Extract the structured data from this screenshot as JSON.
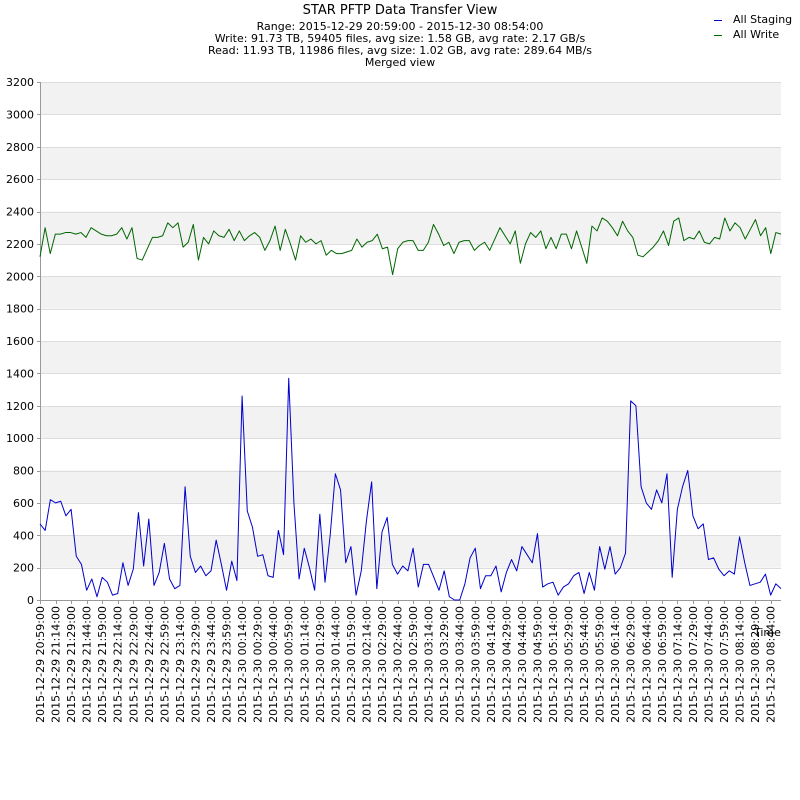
{
  "title": "STAR PFTP Data Transfer View",
  "subtitle_lines": [
    "Range: 2015-12-29 20:59:00 - 2015-12-30 08:54:00",
    "Write: 91.73 TB, 59405 files, avg size: 1.58 GB, avg rate: 2.17 GB/s",
    "Read: 11.93 TB, 11986 files, avg size: 1.02 GB, avg rate: 289.64 MB/s",
    "Merged view"
  ],
  "legend": {
    "items": [
      {
        "label": "All Staging",
        "color": "#0000cc"
      },
      {
        "label": "All Write",
        "color": "#006600"
      }
    ]
  },
  "chart_data": {
    "type": "line",
    "title": "STAR PFTP Data Transfer View",
    "xlabel": "Time",
    "ylabel": "",
    "ylim": [
      0,
      3200
    ],
    "yticks": [
      0,
      200,
      400,
      600,
      800,
      1000,
      1200,
      1400,
      1600,
      1800,
      2000,
      2200,
      2400,
      2600,
      2800,
      3000,
      3200
    ],
    "xlim": [
      "2015-12-29 20:59:00",
      "2015-12-30 08:54:00"
    ],
    "grid": true,
    "legend_position": "top-right",
    "x_tick_labels": [
      "2015-12-29 20:59:00",
      "2015-12-29 21:14:00",
      "2015-12-29 21:29:00",
      "2015-12-29 21:44:00",
      "2015-12-29 21:59:00",
      "2015-12-29 22:14:00",
      "2015-12-29 22:29:00",
      "2015-12-29 22:44:00",
      "2015-12-29 22:59:00",
      "2015-12-29 23:14:00",
      "2015-12-29 23:29:00",
      "2015-12-29 23:44:00",
      "2015-12-29 23:59:00",
      "2015-12-30 00:14:00",
      "2015-12-30 00:29:00",
      "2015-12-30 00:44:00",
      "2015-12-30 00:59:00",
      "2015-12-30 01:14:00",
      "2015-12-30 01:29:00",
      "2015-12-30 01:44:00",
      "2015-12-30 01:59:00",
      "2015-12-30 02:14:00",
      "2015-12-30 02:29:00",
      "2015-12-30 02:44:00",
      "2015-12-30 02:59:00",
      "2015-12-30 03:14:00",
      "2015-12-30 03:29:00",
      "2015-12-30 03:44:00",
      "2015-12-30 03:59:00",
      "2015-12-30 04:14:00",
      "2015-12-30 04:29:00",
      "2015-12-30 04:44:00",
      "2015-12-30 04:59:00",
      "2015-12-30 05:14:00",
      "2015-12-30 05:29:00",
      "2015-12-30 05:44:00",
      "2015-12-30 05:59:00",
      "2015-12-30 06:14:00",
      "2015-12-30 06:29:00",
      "2015-12-30 06:44:00",
      "2015-12-30 06:59:00",
      "2015-12-30 07:14:00",
      "2015-12-30 07:29:00",
      "2015-12-30 07:44:00",
      "2015-12-30 07:59:00",
      "2015-12-30 08:14:00",
      "2015-12-30 08:29:00",
      "2015-12-30 08:44:00"
    ],
    "series": [
      {
        "name": "All Staging",
        "color": "#0000cc",
        "values": [
          470,
          430,
          620,
          600,
          610,
          520,
          560,
          270,
          220,
          60,
          130,
          20,
          140,
          110,
          30,
          40,
          230,
          90,
          190,
          540,
          210,
          500,
          90,
          170,
          350,
          130,
          70,
          90,
          700,
          270,
          170,
          210,
          150,
          180,
          370,
          220,
          60,
          240,
          120,
          1260,
          550,
          450,
          270,
          280,
          150,
          140,
          430,
          280,
          1370,
          600,
          130,
          320,
          200,
          60,
          530,
          110,
          400,
          780,
          680,
          230,
          330,
          30,
          180,
          490,
          730,
          70,
          420,
          510,
          220,
          160,
          210,
          180,
          320,
          80,
          220,
          220,
          140,
          60,
          180,
          20,
          0,
          0,
          100,
          260,
          320,
          70,
          150,
          150,
          210,
          50,
          170,
          250,
          180,
          330,
          280,
          230,
          410,
          80,
          100,
          110,
          30,
          80,
          100,
          150,
          170,
          40,
          170,
          60,
          330,
          190,
          330,
          160,
          200,
          290,
          1230,
          1200,
          700,
          600,
          560,
          680,
          600,
          780,
          140,
          560,
          700,
          800,
          520,
          440,
          470,
          250,
          260,
          190,
          150,
          180,
          160,
          390,
          230,
          90,
          100,
          110,
          160,
          30,
          100,
          70
        ]
      },
      {
        "name": "All Write",
        "color": "#006600",
        "values": [
          2120,
          2300,
          2140,
          2260,
          2260,
          2270,
          2270,
          2260,
          2270,
          2240,
          2300,
          2280,
          2260,
          2250,
          2250,
          2260,
          2300,
          2230,
          2300,
          2110,
          2100,
          2170,
          2240,
          2240,
          2250,
          2330,
          2300,
          2330,
          2180,
          2210,
          2320,
          2100,
          2240,
          2200,
          2280,
          2250,
          2240,
          2290,
          2220,
          2280,
          2220,
          2250,
          2270,
          2240,
          2160,
          2220,
          2310,
          2160,
          2290,
          2200,
          2100,
          2250,
          2210,
          2230,
          2200,
          2220,
          2130,
          2160,
          2140,
          2140,
          2150,
          2160,
          2230,
          2180,
          2210,
          2220,
          2260,
          2170,
          2180,
          2010,
          2170,
          2210,
          2220,
          2220,
          2160,
          2160,
          2210,
          2320,
          2260,
          2190,
          2210,
          2140,
          2210,
          2220,
          2220,
          2160,
          2190,
          2210,
          2160,
          2230,
          2300,
          2250,
          2200,
          2280,
          2080,
          2200,
          2270,
          2240,
          2280,
          2170,
          2240,
          2170,
          2260,
          2260,
          2170,
          2280,
          2180,
          2080,
          2310,
          2280,
          2360,
          2340,
          2300,
          2250,
          2340,
          2280,
          2240,
          2130,
          2120,
          2150,
          2180,
          2220,
          2280,
          2190,
          2340,
          2360,
          2220,
          2240,
          2230,
          2280,
          2210,
          2200,
          2240,
          2230,
          2360,
          2280,
          2330,
          2300,
          2230,
          2290,
          2350,
          2250,
          2300,
          2140,
          2270,
          2260
        ]
      }
    ]
  }
}
